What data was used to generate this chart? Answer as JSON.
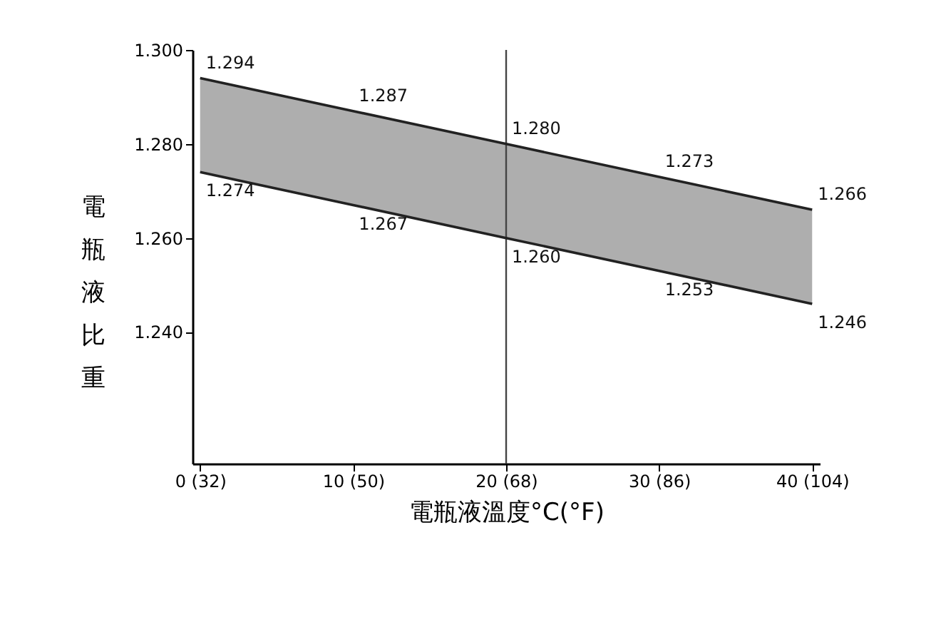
{
  "chart_data": {
    "type": "line",
    "xlabel": "電瓶液溫度°C(°F)",
    "ylabel": "電瓶液比重",
    "categories": [
      "0 (32)",
      "10 (50)",
      "20 (68)",
      "30 (86)",
      "40 (104)"
    ],
    "ylim": [
      1.212,
      1.3
    ],
    "yticks": [
      {
        "value": 1.24,
        "label": "1.240"
      },
      {
        "value": 1.26,
        "label": "1.260"
      },
      {
        "value": 1.28,
        "label": "1.280"
      },
      {
        "value": 1.3,
        "label": "1.300"
      }
    ],
    "series": [
      {
        "color": "#222222",
        "values": [
          1.294,
          1.287,
          1.28,
          1.273,
          1.266
        ],
        "value_labels": [
          "1.294",
          "1.287",
          "1.280",
          "1.273",
          "1.266"
        ],
        "lower": [
          1.274,
          1.267,
          1.26,
          1.253,
          1.246
        ],
        "upper": [
          1.294,
          1.287,
          1.28,
          1.273,
          1.266
        ]
      },
      {
        "color": "#222222",
        "values": [
          1.274,
          1.267,
          1.26,
          1.253,
          1.246
        ],
        "value_labels": [
          "1.274",
          "1.267",
          "1.260",
          "1.253",
          "1.246"
        ]
      }
    ],
    "ref_lines": [
      {
        "axis": "x",
        "value": "20 (68)",
        "color": "#444444"
      }
    ],
    "grid": false
  }
}
